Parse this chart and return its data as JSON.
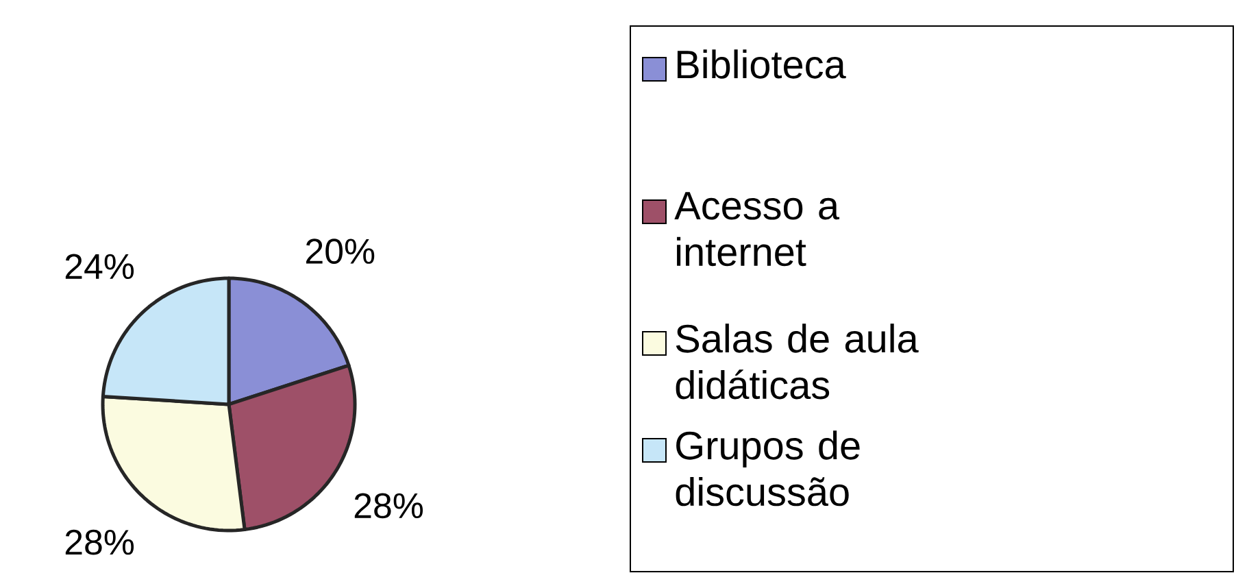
{
  "chart_data": {
    "type": "pie",
    "categories": [
      "Biblioteca",
      "Acesso a internet",
      "Salas de aula didáticas",
      "Grupos de discussão"
    ],
    "values": [
      20,
      28,
      28,
      24
    ],
    "colors": [
      "#8a8fd6",
      "#9e5068",
      "#fbfbe0",
      "#c6e6f8"
    ],
    "value_labels": [
      "20%",
      "28%",
      "28%",
      "24%"
    ],
    "legend": "right"
  }
}
